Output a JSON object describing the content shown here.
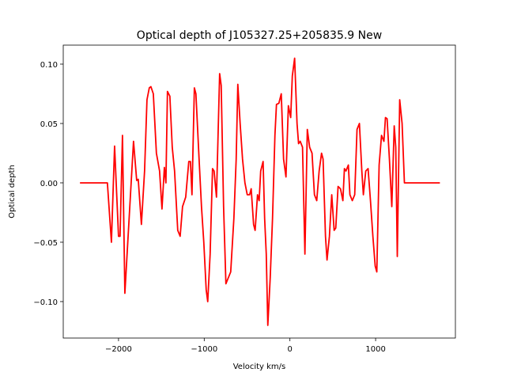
{
  "chart_data": {
    "type": "line",
    "title": "Optical depth of J105327.25+205835.9 New",
    "x_label": "Velocity km/s",
    "y_label": "Optical depth",
    "color": "#ff0000",
    "x": [
      -2450,
      -2130,
      -2083,
      -2046,
      -2000,
      -1982,
      -1954,
      -1926,
      -1825,
      -1788,
      -1770,
      -1733,
      -1696,
      -1668,
      -1641,
      -1622,
      -1594,
      -1558,
      -1521,
      -1493,
      -1465,
      -1447,
      -1429,
      -1401,
      -1373,
      -1346,
      -1309,
      -1281,
      -1253,
      -1216,
      -1180,
      -1161,
      -1143,
      -1115,
      -1097,
      -1060,
      -1032,
      -1005,
      -977,
      -959,
      -931,
      -903,
      -885,
      -857,
      -820,
      -802,
      -774,
      -747,
      -719,
      -691,
      -654,
      -627,
      -608,
      -581,
      -553,
      -525,
      -498,
      -470,
      -452,
      -424,
      -406,
      -378,
      -359,
      -341,
      -313,
      -295,
      -276,
      -258,
      -230,
      -203,
      -175,
      -157,
      -129,
      -101,
      -74,
      -46,
      -18,
      9,
      28,
      55,
      83,
      101,
      120,
      147,
      175,
      203,
      230,
      258,
      286,
      313,
      341,
      369,
      387,
      415,
      433,
      461,
      488,
      516,
      535,
      562,
      590,
      618,
      636,
      654,
      682,
      700,
      728,
      756,
      783,
      811,
      839,
      857,
      885,
      912,
      940,
      968,
      995,
      1014,
      1041,
      1069,
      1097,
      1115,
      1134,
      1161,
      1189,
      1217,
      1235,
      1253,
      1281,
      1309,
      1336,
      1750
    ],
    "values": [
      0,
      0,
      -0.05,
      0.031,
      -0.045,
      -0.045,
      0.04,
      -0.093,
      0.035,
      0.002,
      0.003,
      -0.035,
      0.01,
      0.07,
      0.08,
      0.081,
      0.075,
      0.025,
      0.01,
      -0.022,
      0.013,
      0,
      0.077,
      0.073,
      0.03,
      0.01,
      -0.04,
      -0.045,
      -0.02,
      -0.012,
      0.018,
      0.018,
      -0.01,
      0.08,
      0.075,
      0.02,
      -0.02,
      -0.05,
      -0.09,
      -0.1,
      -0.06,
      0.012,
      0.01,
      -0.012,
      0.092,
      0.082,
      -0.02,
      -0.085,
      -0.08,
      -0.075,
      -0.03,
      0.02,
      0.083,
      0.05,
      0.02,
      0,
      -0.01,
      -0.01,
      -0.005,
      -0.035,
      -0.04,
      -0.01,
      -0.015,
      0.01,
      0.018,
      -0.03,
      -0.06,
      -0.12,
      -0.08,
      -0.03,
      0.04,
      0.066,
      0.067,
      0.075,
      0.02,
      0.005,
      0.065,
      0.055,
      0.09,
      0.105,
      0.05,
      0.033,
      0.035,
      0.03,
      -0.06,
      0.045,
      0.03,
      0.025,
      -0.01,
      -0.015,
      0.01,
      0.025,
      0.02,
      -0.045,
      -0.065,
      -0.045,
      -0.01,
      -0.04,
      -0.038,
      -0.003,
      -0.005,
      -0.015,
      0.012,
      0.01,
      0.015,
      -0.01,
      -0.015,
      -0.01,
      0.045,
      0.05,
      0.01,
      -0.01,
      0.01,
      0.012,
      -0.015,
      -0.045,
      -0.07,
      -0.075,
      0.015,
      0.04,
      0.035,
      0.055,
      0.054,
      0.02,
      -0.02,
      0.048,
      0.03,
      -0.062,
      0.07,
      0.05,
      0,
      0
    ],
    "xlim": [
      -2645,
      1931
    ],
    "ylim": [
      -0.1307,
      0.116
    ],
    "xticks": [
      {
        "value": -2000,
        "label": "−2000"
      },
      {
        "value": -1000,
        "label": "−1000"
      },
      0,
      1000
    ],
    "yticks": [
      {
        "value": -0.1,
        "label": "−0.10"
      },
      {
        "value": -0.05,
        "label": "−0.05"
      },
      {
        "value": 0,
        "label": "0.00"
      },
      {
        "value": 0.05,
        "label": "0.05"
      },
      {
        "value": 0.1,
        "label": "0.10"
      }
    ]
  }
}
